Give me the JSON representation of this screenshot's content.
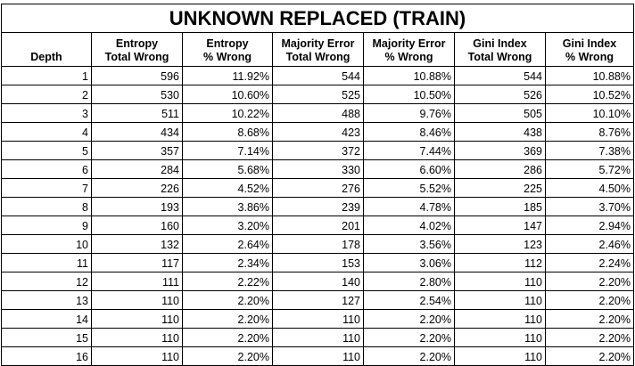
{
  "title": "UNKNOWN REPLACED (TRAIN)",
  "headers": [
    [
      "Depth"
    ],
    [
      "Entropy",
      "Total Wrong"
    ],
    [
      "Entropy",
      "% Wrong"
    ],
    [
      "Majority Error",
      "Total Wrong"
    ],
    [
      "Majority Error",
      "% Wrong"
    ],
    [
      "Gini Index",
      "Total Wrong"
    ],
    [
      "Gini Index",
      "% Wrong"
    ]
  ],
  "rows": [
    [
      "1",
      "596",
      "11.92%",
      "544",
      "10.88%",
      "544",
      "10.88%"
    ],
    [
      "2",
      "530",
      "10.60%",
      "525",
      "10.50%",
      "526",
      "10.52%"
    ],
    [
      "3",
      "511",
      "10.22%",
      "488",
      "9.76%",
      "505",
      "10.10%"
    ],
    [
      "4",
      "434",
      "8.68%",
      "423",
      "8.46%",
      "438",
      "8.76%"
    ],
    [
      "5",
      "357",
      "7.14%",
      "372",
      "7.44%",
      "369",
      "7.38%"
    ],
    [
      "6",
      "284",
      "5.68%",
      "330",
      "6.60%",
      "286",
      "5.72%"
    ],
    [
      "7",
      "226",
      "4.52%",
      "276",
      "5.52%",
      "225",
      "4.50%"
    ],
    [
      "8",
      "193",
      "3.86%",
      "239",
      "4.78%",
      "185",
      "3.70%"
    ],
    [
      "9",
      "160",
      "3.20%",
      "201",
      "4.02%",
      "147",
      "2.94%"
    ],
    [
      "10",
      "132",
      "2.64%",
      "178",
      "3.56%",
      "123",
      "2.46%"
    ],
    [
      "11",
      "117",
      "2.34%",
      "153",
      "3.06%",
      "112",
      "2.24%"
    ],
    [
      "12",
      "111",
      "2.22%",
      "140",
      "2.80%",
      "110",
      "2.20%"
    ],
    [
      "13",
      "110",
      "2.20%",
      "127",
      "2.54%",
      "110",
      "2.20%"
    ],
    [
      "14",
      "110",
      "2.20%",
      "110",
      "2.20%",
      "110",
      "2.20%"
    ],
    [
      "15",
      "110",
      "2.20%",
      "110",
      "2.20%",
      "110",
      "2.20%"
    ],
    [
      "16",
      "110",
      "2.20%",
      "110",
      "2.20%",
      "110",
      "2.20%"
    ]
  ]
}
